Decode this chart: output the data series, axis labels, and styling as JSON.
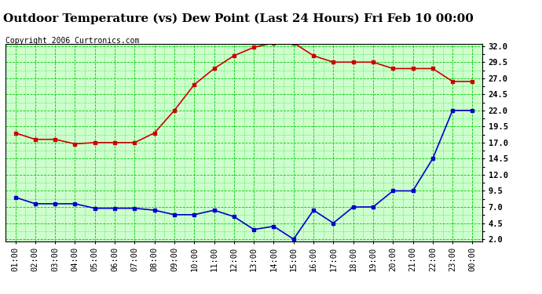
{
  "title": "Outdoor Temperature (vs) Dew Point (Last 24 Hours) Fri Feb 10 00:00",
  "copyright": "Copyright 2006 Curtronics.com",
  "x_labels": [
    "01:00",
    "02:00",
    "03:00",
    "04:00",
    "05:00",
    "06:00",
    "07:00",
    "08:00",
    "09:00",
    "10:00",
    "11:00",
    "12:00",
    "13:00",
    "14:00",
    "15:00",
    "16:00",
    "17:00",
    "18:00",
    "19:00",
    "20:00",
    "21:00",
    "22:00",
    "23:00",
    "00:00"
  ],
  "temp_data": [
    18.5,
    17.5,
    17.5,
    16.8,
    17.0,
    17.0,
    17.0,
    18.5,
    22.0,
    26.0,
    28.5,
    30.5,
    31.8,
    32.5,
    32.5,
    30.5,
    29.5,
    29.5,
    29.5,
    28.5,
    28.5,
    28.5,
    26.5,
    26.5
  ],
  "dew_data": [
    8.5,
    7.5,
    7.5,
    7.5,
    6.8,
    6.8,
    6.8,
    6.5,
    5.8,
    5.8,
    6.5,
    5.5,
    3.5,
    4.0,
    2.0,
    6.5,
    4.5,
    7.0,
    7.0,
    9.5,
    9.5,
    14.5,
    22.0,
    22.0
  ],
  "temp_color": "#cc0000",
  "dew_color": "#0000cc",
  "grid_major_color": "#00cc00",
  "grid_minor_color": "#00cc00",
  "bg_color": "#ccffcc",
  "outer_bg": "#ffffff",
  "ylim_min": 2.0,
  "ylim_max": 32.0,
  "yticks": [
    2.0,
    4.5,
    7.0,
    9.5,
    12.0,
    14.5,
    17.0,
    19.5,
    22.0,
    24.5,
    27.0,
    29.5,
    32.0
  ],
  "title_fontsize": 11,
  "copyright_fontsize": 7,
  "tick_fontsize": 7.5,
  "markersize": 3,
  "linewidth": 1.2
}
